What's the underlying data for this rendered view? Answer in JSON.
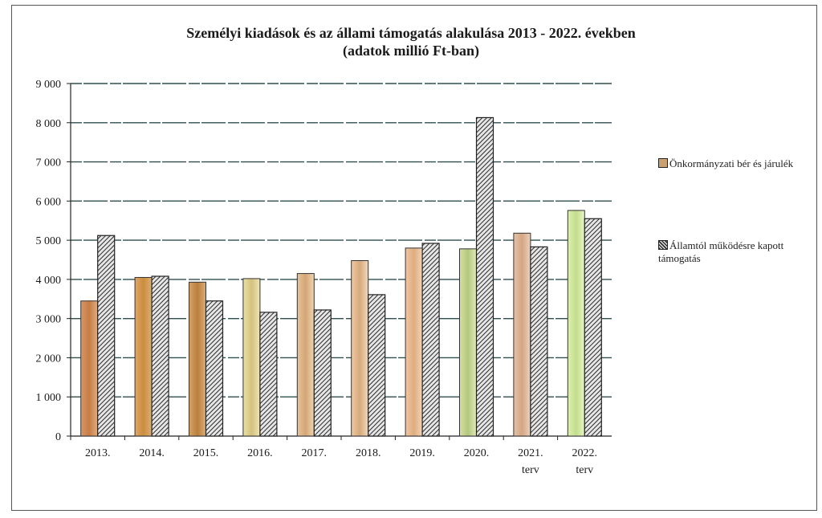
{
  "chart_data": {
    "type": "bar",
    "title": "Személyi kiadások és az állami támogatás alakulása 2013 - 2022. években",
    "subtitle": "(adatok millió Ft-ban)",
    "categories": [
      "2013.",
      "2014.",
      "2015.",
      "2016.",
      "2017.",
      "2018.",
      "2019.",
      "2020.",
      "2021. terv",
      "2022. terv"
    ],
    "category_lines": [
      [
        "2013."
      ],
      [
        "2014."
      ],
      [
        "2015."
      ],
      [
        "2016."
      ],
      [
        "2017."
      ],
      [
        "2018."
      ],
      [
        "2019."
      ],
      [
        "2020."
      ],
      [
        "2021.",
        "terv"
      ],
      [
        "2022.",
        "terv"
      ]
    ],
    "series": [
      {
        "name": "Önkormányzati bér és járulék",
        "values": [
          3450,
          4050,
          3930,
          4020,
          4150,
          4480,
          4800,
          4780,
          5180,
          5760
        ]
      },
      {
        "name": "Államtól működésre kapott támogatás",
        "values": [
          5120,
          4080,
          3450,
          3160,
          3220,
          3610,
          4920,
          8130,
          4830,
          5550
        ]
      }
    ],
    "series_colors": [
      "#c9a070",
      "#555555"
    ],
    "bar_gradients": [
      [
        "#d59868",
        "#c97c45",
        "#e0ae80"
      ],
      [
        "#e4a568",
        "#c98d3d",
        "#deae73"
      ],
      [
        "#d6a36b",
        "#b97f3c",
        "#dcae76"
      ],
      [
        "#e8e2a6",
        "#d4c17e",
        "#efe7b5"
      ],
      [
        "#e7c49c",
        "#d4a676",
        "#efd6b1"
      ],
      [
        "#eccaa5",
        "#d8aa7d",
        "#f2d8bb"
      ],
      [
        "#efc8a4",
        "#dfac80",
        "#f3d4b7"
      ],
      [
        "#d6e1a2",
        "#b3c77e",
        "#e2ebb8"
      ],
      [
        "#e7c2a7",
        "#d3a684",
        "#efd2bd"
      ],
      [
        "#def0b0",
        "#c2dd8c",
        "#ebf6c6"
      ]
    ],
    "ylim": [
      0,
      9000
    ],
    "yticks": [
      0,
      1000,
      2000,
      3000,
      4000,
      5000,
      6000,
      7000,
      8000,
      9000
    ],
    "ytick_labels": [
      "0",
      "1 000",
      "2 000",
      "3 000",
      "4 000",
      "5 000",
      "6 000",
      "7 000",
      "8 000",
      "9 000"
    ],
    "xlabel": "",
    "ylabel": "",
    "grid": true,
    "legend_position": "right",
    "legend": [
      {
        "lines": [
          "Önkormányzati bér és járulék"
        ]
      },
      {
        "lines": [
          "Államtól működésre kapott",
          "támogatás"
        ]
      }
    ]
  }
}
